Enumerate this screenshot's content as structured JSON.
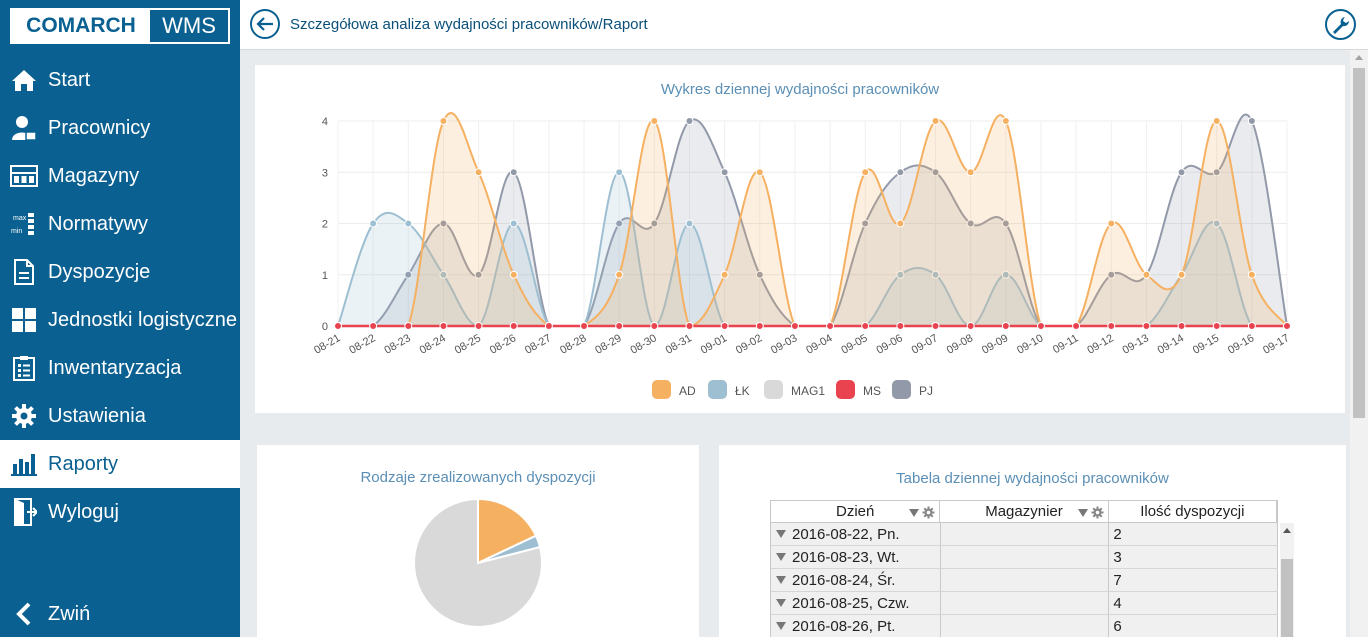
{
  "sidebar": {
    "logo_brand": "COMARCH",
    "logo_product": "WMS",
    "items": [
      {
        "label": "Start",
        "icon": "home-icon"
      },
      {
        "label": "Pracownicy",
        "icon": "user-icon"
      },
      {
        "label": "Magazyny",
        "icon": "warehouse-icon"
      },
      {
        "label": "Normatywy",
        "icon": "minmax-icon"
      },
      {
        "label": "Dyspozycje",
        "icon": "document-icon"
      },
      {
        "label": "Jednostki logistyczne",
        "icon": "grid-icon"
      },
      {
        "label": "Inwentaryzacja",
        "icon": "checklist-icon"
      },
      {
        "label": "Ustawienia",
        "icon": "gear-icon"
      },
      {
        "label": "Raporty",
        "icon": "bar-chart-icon",
        "active": true
      },
      {
        "label": "Wyloguj",
        "icon": "logout-icon"
      }
    ],
    "collapse_label": "Zwiń",
    "minmax_text": {
      "max": "max",
      "min": "min"
    }
  },
  "header": {
    "title": "Szczegółowa analiza wydajności pracowników/Raport"
  },
  "colors": {
    "sidebar_bg": "#0a6091",
    "AD": "#f5b061",
    "ŁK": "#9dbfd1",
    "MAG1": "#d9d9d9",
    "MS": "#e8434f",
    "PJ": "#9299a9"
  },
  "line_chart": {
    "title": "Wykres dziennej wydajności pracowników",
    "chart_data": {
      "type": "area",
      "x": [
        "08-21",
        "08-22",
        "08-23",
        "08-24",
        "08-25",
        "08-26",
        "08-27",
        "08-28",
        "08-29",
        "08-30",
        "08-31",
        "09-01",
        "09-02",
        "09-03",
        "09-04",
        "09-05",
        "09-06",
        "09-07",
        "09-08",
        "09-09",
        "09-10",
        "09-11",
        "09-12",
        "09-13",
        "09-14",
        "09-15",
        "09-16",
        "09-17"
      ],
      "ylim": [
        0,
        4
      ],
      "yticks": [
        0,
        1,
        2,
        3,
        4
      ],
      "series": [
        {
          "name": "AD",
          "values": [
            0,
            0,
            0,
            4,
            3,
            1,
            0,
            0,
            1,
            4,
            0,
            1,
            3,
            0,
            0,
            3,
            2,
            4,
            3,
            4,
            0,
            0,
            2,
            1,
            1,
            4,
            1,
            0
          ]
        },
        {
          "name": "ŁK",
          "values": [
            0,
            2,
            2,
            1,
            0,
            2,
            0,
            0,
            3,
            0,
            2,
            0,
            0,
            0,
            0,
            0,
            1,
            1,
            0,
            1,
            0,
            0,
            0,
            0,
            1,
            2,
            0,
            0
          ]
        },
        {
          "name": "MAG1",
          "values": [
            0,
            0,
            0,
            0,
            0,
            0,
            0,
            0,
            0,
            0,
            0,
            0,
            0,
            0,
            0,
            0,
            0,
            0,
            0,
            0,
            0,
            0,
            0,
            0,
            0,
            0,
            0,
            0
          ]
        },
        {
          "name": "MS",
          "values": [
            0,
            0,
            0,
            0,
            0,
            0,
            0,
            0,
            0,
            0,
            0,
            0,
            0,
            0,
            0,
            0,
            0,
            0,
            0,
            0,
            0,
            0,
            0,
            0,
            0,
            0,
            0,
            0
          ]
        },
        {
          "name": "PJ",
          "values": [
            0,
            0,
            1,
            2,
            1,
            3,
            0,
            0,
            2,
            2,
            4,
            3,
            1,
            0,
            0,
            2,
            3,
            3,
            2,
            2,
            0,
            0,
            1,
            1,
            3,
            3,
            4,
            0
          ]
        }
      ],
      "legend": [
        "AD",
        "ŁK",
        "MAG1",
        "MS",
        "PJ"
      ],
      "legend_position": "bottom"
    }
  },
  "pie_chart": {
    "title": "Rodzaje zrealizowanych dyspozycji",
    "chart_data": {
      "type": "pie",
      "slices": [
        {
          "value": 18,
          "color": "#f5b061"
        },
        {
          "value": 3,
          "color": "#9dbfd1"
        },
        {
          "value": 79,
          "color": "#d9d9d9"
        }
      ]
    }
  },
  "table": {
    "title": "Tabela dziennej wydajności pracowników",
    "columns": [
      "Dzień",
      "Magazynier",
      "Ilość dyspozycji"
    ],
    "rows": [
      {
        "day": "2016-08-22, Pn.",
        "worker": "",
        "count": "2"
      },
      {
        "day": "2016-08-23, Wt.",
        "worker": "",
        "count": "3"
      },
      {
        "day": "2016-08-24, Śr.",
        "worker": "",
        "count": "7"
      },
      {
        "day": "2016-08-25, Czw.",
        "worker": "",
        "count": "4"
      },
      {
        "day": "2016-08-26, Pt.",
        "worker": "",
        "count": "6"
      }
    ]
  }
}
